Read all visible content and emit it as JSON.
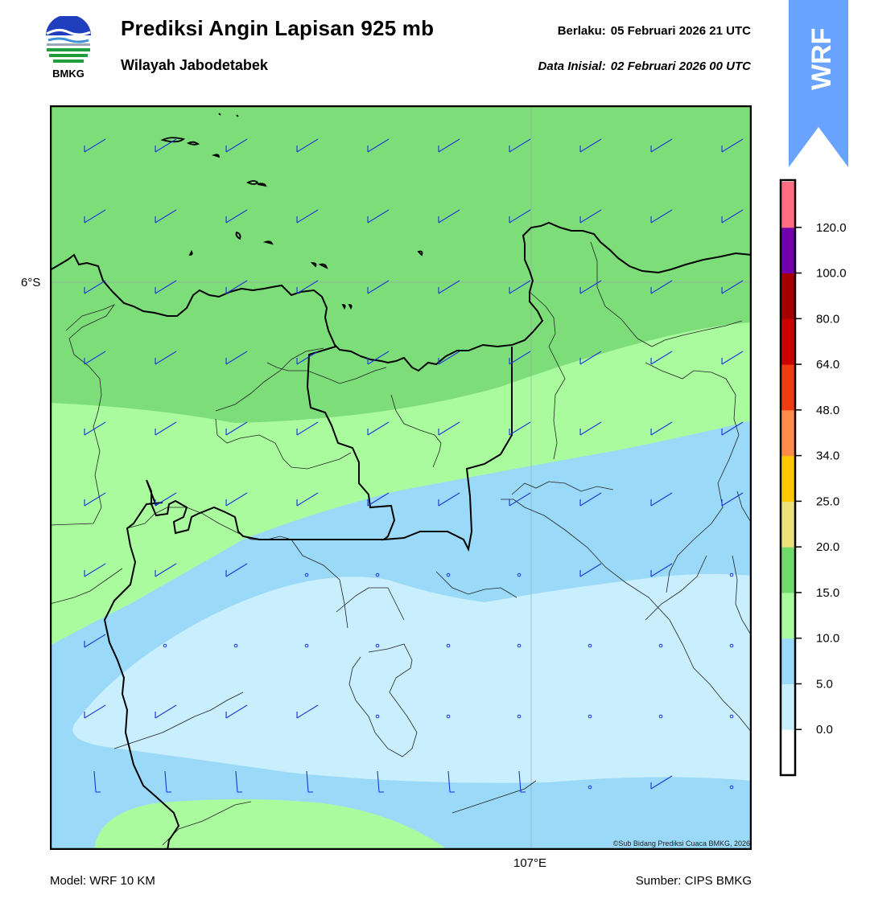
{
  "header": {
    "title": "Prediksi Angin Lapisan 925 mb",
    "subtitle": "Wilayah Jabodetabek",
    "valid_label": "Berlaku:",
    "valid_value": "05 Februari 2026 21 UTC",
    "init_label": "Data Inisial:",
    "init_value": "02 Februari 2026 00 UTC"
  },
  "logo": {
    "text": "BMKG",
    "icon": "bmkg-logo-icon"
  },
  "badge": {
    "text": "WRF",
    "color": "#6aa2ff"
  },
  "map": {
    "lat_label": "6°S",
    "lon_label": "107°E",
    "credit": "©Sub Bidang Prediksi Cuaca BMKG, 2026",
    "barb_color": "#1a35d6",
    "zones_colors": {
      "dark_green": "#7ddd79",
      "light_green": "#a9fb9e",
      "light_blue": "#9ad9f8",
      "pale_blue": "#c9eefd"
    }
  },
  "colorbar": {
    "ticks": [
      "120.0",
      "100.0",
      "80.0",
      "64.0",
      "48.0",
      "34.0",
      "25.0",
      "20.0",
      "15.0",
      "10.0",
      "5.0",
      "0.0"
    ],
    "colors": [
      "#ffffff",
      "#c9eefd",
      "#9ad9f8",
      "#a9fb9e",
      "#6fd96b",
      "#ede27a",
      "#ffc800",
      "#ff8c4a",
      "#ef3a12",
      "#cc0000",
      "#a50000",
      "#7200ab",
      "#ff6d82"
    ]
  },
  "footer": {
    "model": "Model: WRF 10 KM",
    "source": "Sumber: CIPS BMKG"
  }
}
